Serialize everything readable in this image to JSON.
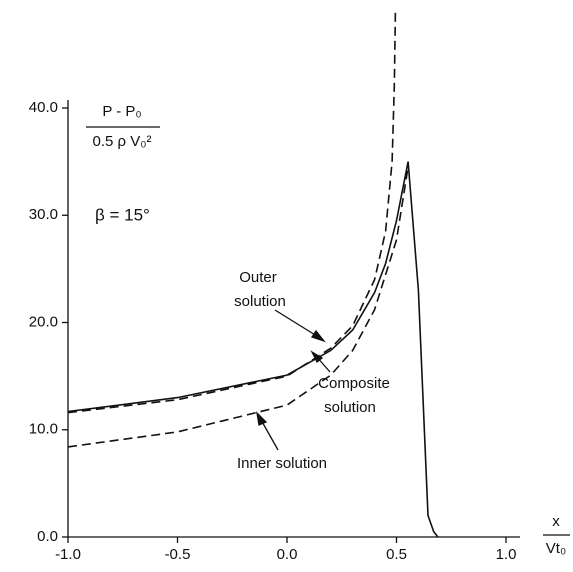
{
  "chart_data": {
    "type": "line",
    "y_label_numerator": "P - P₀",
    "y_label_denominator": "0.5 ρ V₀²",
    "x_label_numerator": "x",
    "x_label_denominator": "Vt₀",
    "annotations": [
      "β = 15°",
      "Outer",
      "solution",
      "Composite",
      "solution",
      "Inner solution"
    ],
    "xlim": [
      -1.0,
      1.0
    ],
    "ylim": [
      0,
      40
    ],
    "xticks": [
      {
        "value": -1,
        "label": "-1.0"
      },
      {
        "value": -0.5,
        "label": "-0.5"
      },
      {
        "value": 0,
        "label": "0.0"
      },
      {
        "value": 0.5,
        "label": "0.5"
      },
      {
        "value": 1,
        "label": "1.0"
      }
    ],
    "yticks": [
      {
        "value": 0,
        "label": "0.0"
      },
      {
        "value": 10,
        "label": "10.0"
      },
      {
        "value": 20,
        "label": "20.0"
      },
      {
        "value": 30,
        "label": "30.0"
      },
      {
        "value": 40,
        "label": "40.0"
      }
    ],
    "series": [
      {
        "name": "Outer solution",
        "color": "#111111",
        "style": "dashed",
        "x": [
          -1.0,
          -0.5,
          0.0,
          0.2,
          0.3,
          0.4,
          0.45,
          0.48,
          0.49,
          0.495
        ],
        "values": [
          11.6,
          12.8,
          15.0,
          17.6,
          19.7,
          24.0,
          28.5,
          35,
          42,
          49
        ]
      },
      {
        "name": "Composite solution",
        "color": "#111111",
        "style": "solid",
        "x": [
          -1.0,
          -0.5,
          0.0,
          0.2,
          0.3,
          0.4,
          0.45,
          0.5,
          0.553,
          0.6,
          0.644,
          0.67,
          0.689
        ],
        "values": [
          11.7,
          13.0,
          15.1,
          17.4,
          19.3,
          22.8,
          25.5,
          29.5,
          35.0,
          23.0,
          2.0,
          0.5,
          0
        ]
      },
      {
        "name": "Inner solution",
        "color": "#111111",
        "style": "dashed",
        "x": [
          -1.0,
          -0.5,
          0.0,
          0.2,
          0.3,
          0.4,
          0.5,
          0.553
        ],
        "values": [
          8.4,
          9.8,
          12.3,
          15.1,
          17.4,
          21.2,
          27.7,
          34.5
        ]
      }
    ]
  }
}
